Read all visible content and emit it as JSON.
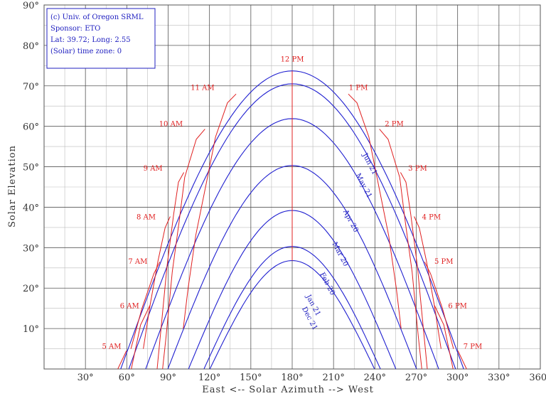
{
  "chart_data": {
    "type": "line",
    "xlabel": "East <-- Solar Azimuth --> West",
    "ylabel": "Solar Elevation",
    "xlim": [
      0,
      360
    ],
    "ylim": [
      0,
      90
    ],
    "x_ticks": [
      "30°",
      "60°",
      "90°",
      "120°",
      "150°",
      "180°",
      "210°",
      "240°",
      "270°",
      "300°",
      "330°",
      "360°"
    ],
    "y_ticks": [
      "10°",
      "20°",
      "30°",
      "40°",
      "50°",
      "60°",
      "70°",
      "80°",
      "90°"
    ],
    "grid": true,
    "info_box": [
      "(c) Univ. of Oregon SRML",
      "Sponsor: ETO",
      "Lat: 39.72; Long: 2.55",
      "(Solar) time zone: 0"
    ],
    "date_series": [
      {
        "name": "Jun 21",
        "max_elevation": 73.7,
        "azimuth_range": [
          55.6,
          304.4
        ],
        "label_at": [
          231,
          53
        ]
      },
      {
        "name": "May 21",
        "max_elevation": 70.5,
        "azimuth_range": [
          61.5,
          298.5
        ],
        "label_at": [
          226,
          48
        ]
      },
      {
        "name": "Apr 20",
        "max_elevation": 61.9,
        "azimuth_range": [
          73.7,
          286.3
        ],
        "label_at": [
          217,
          39
        ]
      },
      {
        "name": "Mar 20",
        "max_elevation": 50.3,
        "azimuth_range": [
          89.8,
          270.2
        ],
        "label_at": [
          209,
          31
        ]
      },
      {
        "name": "Feb 20",
        "max_elevation": 39.2,
        "azimuth_range": [
          104.8,
          255.2
        ],
        "label_at": [
          200,
          23.5
        ]
      },
      {
        "name": "Jan 21",
        "max_elevation": 30.3,
        "azimuth_range": [
          116.0,
          244.0
        ],
        "label_at": [
          190,
          18
        ]
      },
      {
        "name": "Dec 21",
        "max_elevation": 26.8,
        "azimuth_range": [
          120.3,
          239.7
        ],
        "label_at": [
          187,
          15
        ]
      }
    ],
    "hour_series": [
      {
        "name": "5 AM",
        "points": [
          [
            59.8,
            4.5
          ],
          [
            53.5,
            0
          ]
        ],
        "label_at": [
          49,
          5
        ]
      },
      {
        "name": "6 AM",
        "points": [
          [
            76.9,
            15.8
          ],
          [
            70.0,
            10.9
          ],
          [
            63.3,
            0
          ]
        ],
        "label_at": [
          62,
          15
        ]
      },
      {
        "name": "7 AM",
        "points": [
          [
            84.0,
            26.5
          ],
          [
            79.7,
            23.6
          ],
          [
            71.0,
            15.0
          ],
          [
            63.0,
            5.0
          ]
        ],
        "label_at": [
          68,
          26
        ]
      },
      {
        "name": "8 AM",
        "points": [
          [
            91.5,
            37.7
          ],
          [
            87.8,
            34.9
          ],
          [
            82.6,
            26.7
          ],
          [
            77.0,
            16.0
          ],
          [
            72.0,
            5.0
          ]
        ],
        "label_at": [
          74,
          37
        ]
      },
      {
        "name": "9 AM",
        "points": [
          [
            101.4,
            48.6
          ],
          [
            97.5,
            46.2
          ],
          [
            94.0,
            38.3
          ],
          [
            89.2,
            25.4
          ],
          [
            86.0,
            14.0
          ],
          [
            82.0,
            0
          ]
        ],
        "label_at": [
          79,
          49
        ]
      },
      {
        "name": "10 AM",
        "points": [
          [
            116.7,
            59.3
          ],
          [
            110.4,
            56.8
          ],
          [
            102.0,
            47.4
          ],
          [
            98.0,
            36.5
          ],
          [
            93.0,
            24.0
          ],
          [
            88.5,
            8.0
          ],
          [
            86.0,
            0
          ]
        ],
        "label_at": [
          92,
          60
        ]
      },
      {
        "name": "11 AM",
        "points": [
          [
            139.3,
            68.0
          ],
          [
            133.0,
            65.8
          ],
          [
            124.4,
            57.4
          ],
          [
            117.0,
            44.8
          ],
          [
            110.0,
            33.0
          ],
          [
            104.5,
            20.0
          ],
          [
            101.0,
            10.0
          ]
        ],
        "label_at": [
          115,
          69
        ]
      },
      {
        "name": "12 PM",
        "points": [
          [
            180.0,
            73.7
          ],
          [
            180.0,
            70.5
          ],
          [
            180.0,
            61.9
          ],
          [
            180.0,
            50.3
          ],
          [
            180.0,
            39.2
          ],
          [
            180.0,
            30.3
          ],
          [
            180.0,
            26.8
          ]
        ],
        "label_at": [
          180,
          76
        ]
      },
      {
        "name": "1 PM",
        "points": [
          [
            220.7,
            68.0
          ],
          [
            227.0,
            65.8
          ],
          [
            235.6,
            57.4
          ],
          [
            243.0,
            44.8
          ],
          [
            250.0,
            33.0
          ],
          [
            255.5,
            20.0
          ],
          [
            259.0,
            10.0
          ]
        ],
        "label_at": [
          228,
          69
        ]
      },
      {
        "name": "2 PM",
        "points": [
          [
            243.3,
            59.3
          ],
          [
            249.6,
            56.8
          ],
          [
            258.0,
            47.4
          ],
          [
            262.0,
            36.5
          ],
          [
            267.0,
            24.0
          ],
          [
            271.5,
            8.0
          ],
          [
            274.0,
            0
          ]
        ],
        "label_at": [
          254,
          60
        ]
      },
      {
        "name": "3 PM",
        "points": [
          [
            258.6,
            48.6
          ],
          [
            262.5,
            46.2
          ],
          [
            266.0,
            38.3
          ],
          [
            270.8,
            25.4
          ],
          [
            274.0,
            14.0
          ],
          [
            278.0,
            0
          ]
        ],
        "label_at": [
          271,
          49
        ]
      },
      {
        "name": "4 PM",
        "points": [
          [
            268.5,
            37.7
          ],
          [
            272.2,
            34.9
          ],
          [
            277.4,
            26.7
          ],
          [
            283.0,
            16.0
          ],
          [
            288.0,
            5.0
          ]
        ],
        "label_at": [
          281,
          37
        ]
      },
      {
        "name": "5 PM",
        "points": [
          [
            276.0,
            26.5
          ],
          [
            280.3,
            23.6
          ],
          [
            289.0,
            15.0
          ],
          [
            297.0,
            5.0
          ]
        ],
        "label_at": [
          290,
          26
        ]
      },
      {
        "name": "6 PM",
        "points": [
          [
            283.1,
            15.8
          ],
          [
            290.0,
            10.9
          ],
          [
            296.7,
            0
          ]
        ],
        "label_at": [
          300,
          15
        ]
      },
      {
        "name": "7 PM",
        "points": [
          [
            300.2,
            4.5
          ],
          [
            306.5,
            0
          ]
        ],
        "label_at": [
          311,
          5
        ]
      }
    ],
    "colors": {
      "date_curves": "#2020d0",
      "hour_curves": "#e02020",
      "grid": "#555555",
      "minor_grid": "#bbbbbb"
    }
  }
}
